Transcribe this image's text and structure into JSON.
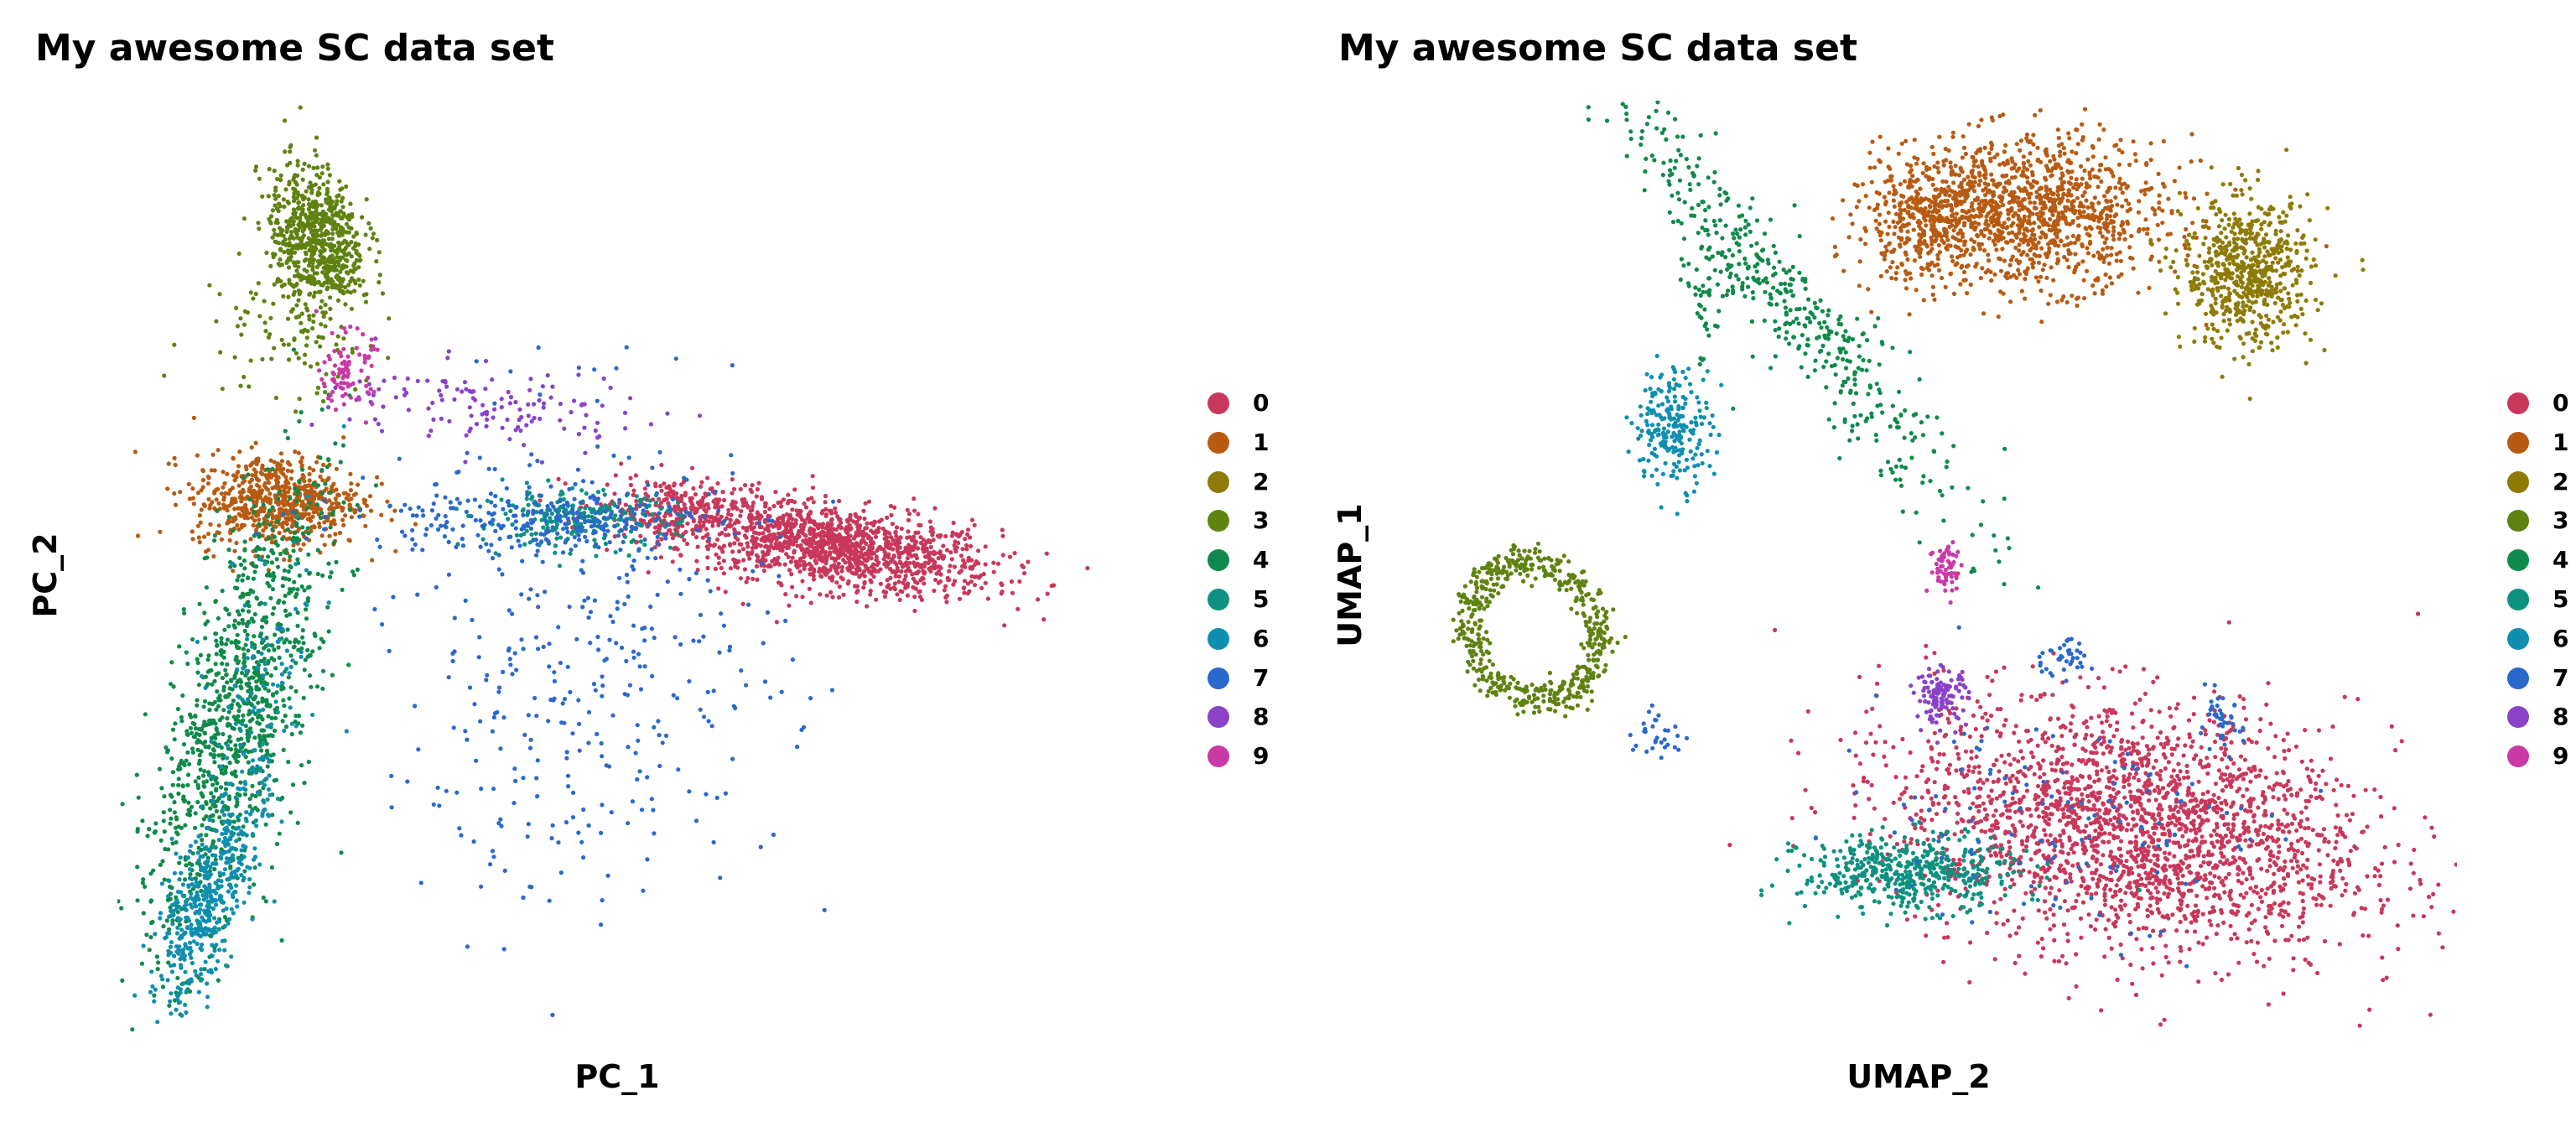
{
  "colors": {
    "0": "#c8385a",
    "1": "#b85b12",
    "2": "#8e7b06",
    "3": "#5f8210",
    "4": "#0f8a4a",
    "5": "#0d9180",
    "6": "#0f8fb0",
    "7": "#2a69cc",
    "8": "#8a42c8",
    "9": "#c93aa6"
  },
  "chart_data": [
    {
      "type": "scatter",
      "title": "My awesome SC data set",
      "xlabel": "PC_1",
      "ylabel": "PC_2",
      "grid": false,
      "axes_ticks": false,
      "legend_placement": "right",
      "legend": [
        "0",
        "1",
        "2",
        "3",
        "4",
        "5",
        "6",
        "7",
        "8",
        "9"
      ],
      "xlim": [
        0,
        100
      ],
      "ylim": [
        0,
        100
      ],
      "clusters": [
        {
          "name": "0",
          "parts": [
            {
              "cx": 72,
              "cy": 52,
              "sx": 8,
              "sy": 2.2,
              "rot": -9,
              "n": 1300
            },
            {
              "cx": 56,
              "cy": 56,
              "sx": 4,
              "sy": 1.8,
              "rot": -5,
              "n": 260
            }
          ]
        },
        {
          "name": "1",
          "parts": [
            {
              "cx": 16,
              "cy": 57,
              "sx": 4.2,
              "sy": 2.5,
              "rot": 0,
              "n": 650
            }
          ]
        },
        {
          "name": "3",
          "parts": [
            {
              "cx": 20,
              "cy": 85,
              "sx": 2.3,
              "sy": 4,
              "rot": 10,
              "n": 700
            },
            {
              "cx": 17,
              "cy": 75,
              "sx": 4.5,
              "sy": 4,
              "rot": 0,
              "n": 90
            }
          ]
        },
        {
          "name": "4",
          "parts": [
            {
              "cx": 12,
              "cy": 34,
              "sx": 3.2,
              "sy": 13,
              "rot": -14,
              "n": 1100
            }
          ]
        },
        {
          "name": "5",
          "parts": [
            {
              "cx": 46,
              "cy": 55,
              "sx": 5,
              "sy": 1.5,
              "rot": 0,
              "n": 230
            }
          ]
        },
        {
          "name": "6",
          "parts": [
            {
              "cx": 9,
              "cy": 14,
              "sx": 1.8,
              "sy": 6,
              "rot": -18,
              "n": 450
            },
            {
              "cx": 14,
              "cy": 33,
              "sx": 2.5,
              "sy": 10,
              "rot": -10,
              "n": 120
            }
          ]
        },
        {
          "name": "7",
          "parts": [
            {
              "cx": 47,
              "cy": 40,
              "sx": 10,
              "sy": 13,
              "rot": 0,
              "n": 380
            },
            {
              "cx": 42,
              "cy": 55,
              "sx": 9,
              "sy": 1.6,
              "rot": 0,
              "n": 240
            }
          ]
        },
        {
          "name": "8",
          "parts": [
            {
              "cx": 38,
              "cy": 67,
              "sx": 8,
              "sy": 2.2,
              "rot": -4,
              "n": 130
            }
          ]
        },
        {
          "name": "9",
          "parts": [
            {
              "cx": 23,
              "cy": 71,
              "sx": 1.3,
              "sy": 2,
              "rot": 0,
              "n": 90
            }
          ]
        }
      ]
    },
    {
      "type": "scatter",
      "title": "My awesome SC data set",
      "xlabel": "UMAP_2",
      "ylabel": "UMAP_1",
      "grid": false,
      "axes_ticks": false,
      "legend_placement": "right",
      "legend": [
        "0",
        "1",
        "2",
        "3",
        "4",
        "5",
        "6",
        "7",
        "8",
        "9"
      ],
      "xlim": [
        0,
        100
      ],
      "ylim": [
        0,
        100
      ],
      "clusters": [
        {
          "name": "0",
          "parts": [
            {
              "cx": 70,
              "cy": 22,
              "sx": 11,
              "sy": 6.5,
              "rot": -12,
              "n": 2300
            }
          ]
        },
        {
          "name": "1",
          "parts": [
            {
              "cx": 60,
              "cy": 88,
              "sx": 6.5,
              "sy": 4,
              "rot": 0,
              "n": 1200
            },
            {
              "cx": 50,
              "cy": 87,
              "sx": 3,
              "sy": 3,
              "rot": 0,
              "n": 300
            }
          ]
        },
        {
          "name": "2",
          "parts": [
            {
              "cx": 80.5,
              "cy": 81.5,
              "sx": 3,
              "sy": 4,
              "rot": 0,
              "n": 650
            }
          ]
        },
        {
          "name": "3",
          "parts": [
            {
              "cx": 14,
              "cy": 43,
              "sx": 6,
              "sy": 7.5,
              "rot": 15,
              "ring": true,
              "n": 550
            }
          ]
        },
        {
          "name": "4",
          "parts": [
            {
              "cx": 38,
              "cy": 78,
              "sx": 2.2,
              "sy": 14,
              "rot": 36,
              "n": 450
            },
            {
              "cx": 30,
              "cy": 79,
              "sx": 1,
              "sy": 4,
              "rot": 0,
              "n": 50
            }
          ]
        },
        {
          "name": "5",
          "parts": [
            {
              "cx": 49,
              "cy": 17,
              "sx": 5,
              "sy": 2,
              "rot": 0,
              "n": 480
            }
          ]
        },
        {
          "name": "6",
          "parts": [
            {
              "cx": 27,
              "cy": 65,
              "sx": 1.8,
              "sy": 3.2,
              "rot": 0,
              "n": 220
            }
          ]
        },
        {
          "name": "7",
          "parts": [
            {
              "cx": 62,
              "cy": 23,
              "sx": 10,
              "sy": 6,
              "rot": -12,
              "n": 120
            },
            {
              "cx": 63,
              "cy": 40,
              "sx": 1.5,
              "sy": 1,
              "rot": 0,
              "n": 40
            },
            {
              "cx": 78,
              "cy": 33,
              "sx": 1,
              "sy": 1.5,
              "rot": 0,
              "n": 40
            },
            {
              "cx": 25,
              "cy": 32,
              "sx": 1.5,
              "sy": 1,
              "rot": -30,
              "n": 30
            }
          ]
        },
        {
          "name": "8",
          "parts": [
            {
              "cx": 52,
              "cy": 36,
              "sx": 1.2,
              "sy": 1.5,
              "rot": 0,
              "n": 120
            }
          ]
        },
        {
          "name": "9",
          "parts": [
            {
              "cx": 52.5,
              "cy": 50,
              "sx": 0.8,
              "sy": 1.5,
              "rot": 0,
              "n": 60
            }
          ]
        }
      ]
    }
  ]
}
